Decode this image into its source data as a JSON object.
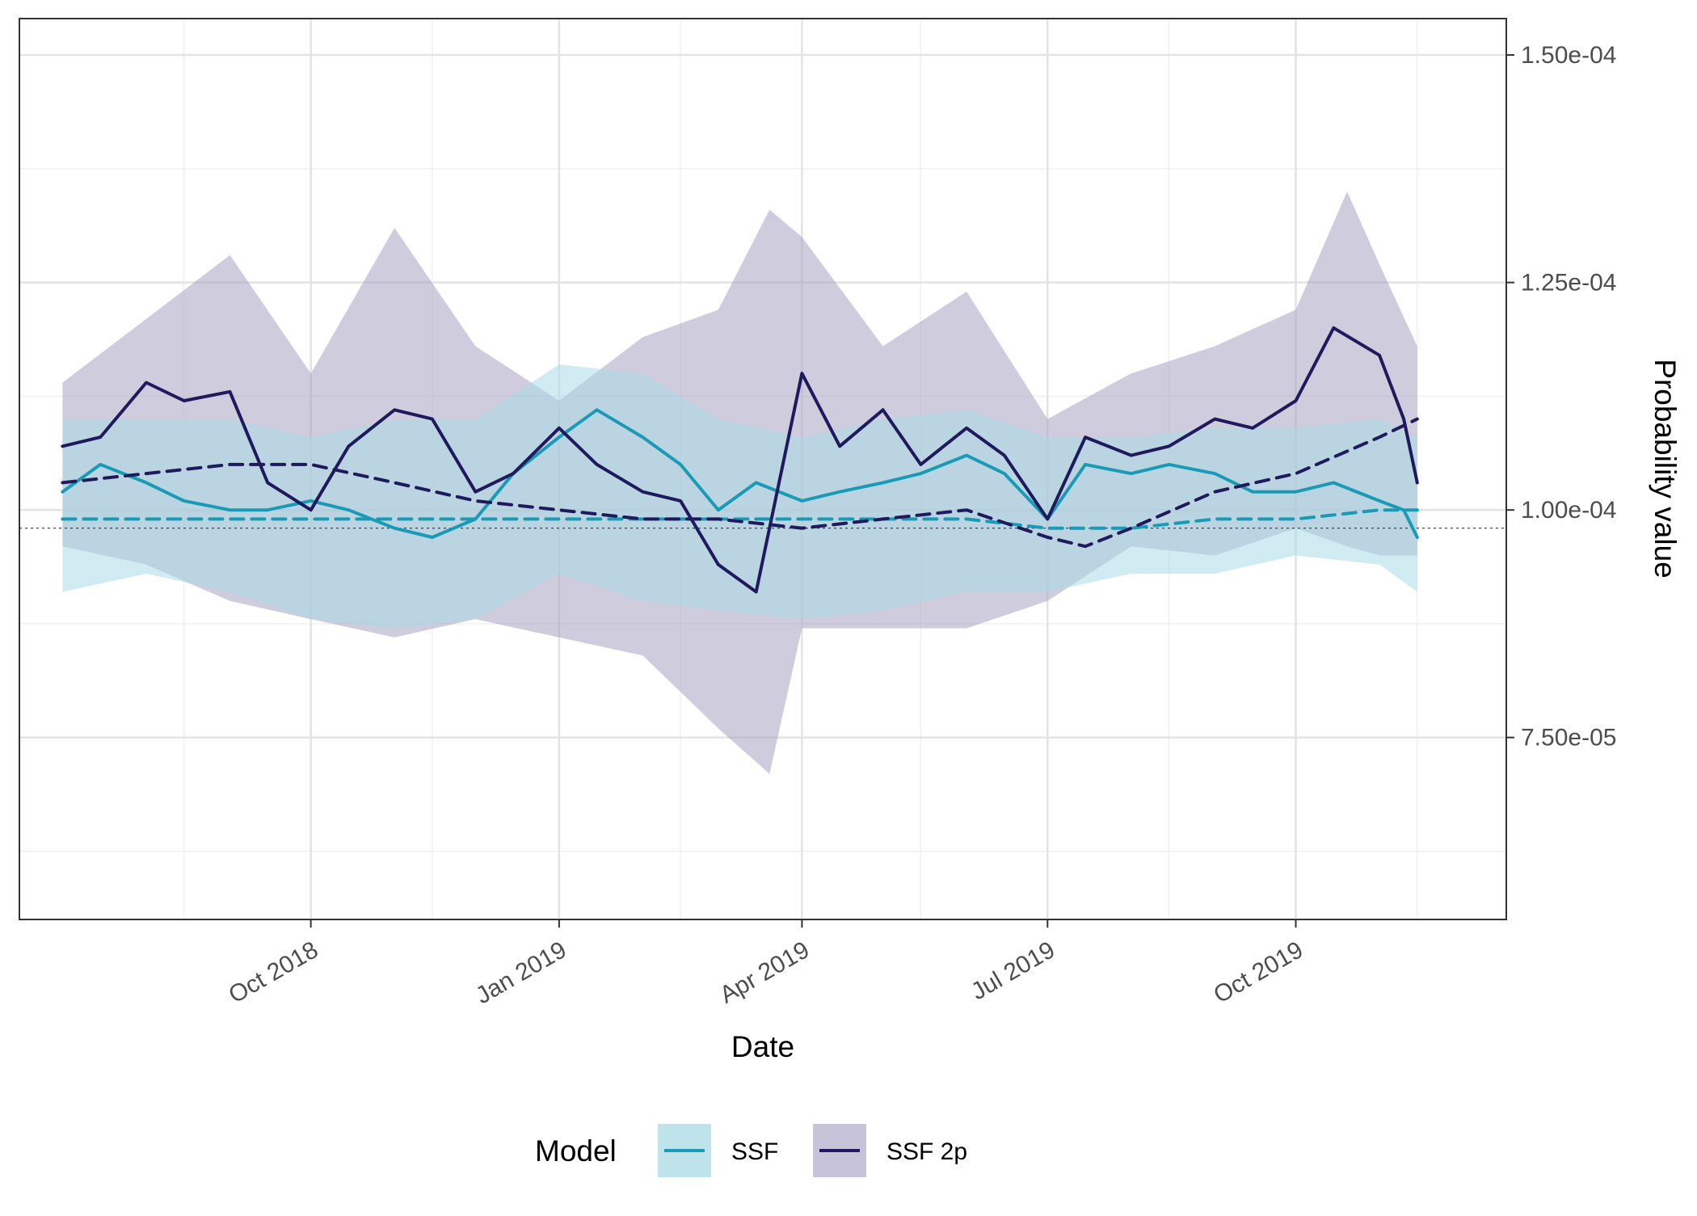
{
  "chart_data": {
    "type": "line",
    "xlabel": "Date",
    "ylabel": "Probability value",
    "x_range": [
      "2018-06-15",
      "2019-12-18"
    ],
    "ylim": [
      5.5e-05,
      0.000154
    ],
    "x_ticks": [
      {
        "date": "2018-10-01",
        "label": "Oct 2018"
      },
      {
        "date": "2019-01-01",
        "label": "Jan 2019"
      },
      {
        "date": "2019-04-01",
        "label": "Apr 2019"
      },
      {
        "date": "2019-07-01",
        "label": "Jul 2019"
      },
      {
        "date": "2019-10-01",
        "label": "Oct 2019"
      }
    ],
    "x_minor_ticks": [
      "2018-08-15",
      "2018-11-15",
      "2019-02-15",
      "2019-05-15",
      "2019-08-15",
      "2019-11-15"
    ],
    "y_ticks": [
      {
        "value": 0.00015,
        "label": "1.50e-04"
      },
      {
        "value": 0.000125,
        "label": "1.25e-04"
      },
      {
        "value": 0.0001,
        "label": "1.00e-04"
      },
      {
        "value": 7.5e-05,
        "label": "7.50e-05"
      }
    ],
    "y_minor_ticks": [
      0.0001375,
      0.0001125,
      8.75e-05,
      6.25e-05
    ],
    "reference_line": {
      "value": 9.8e-05,
      "style": "dotted"
    },
    "grid": true,
    "legend": {
      "title": "Model",
      "position": "bottom",
      "entries": [
        {
          "label": "SSF",
          "color": "#1a9bb5",
          "fill": "#bfe3ea"
        },
        {
          "label": "SSF 2p",
          "color": "#1e1a5c",
          "fill": "#c7c4d9"
        }
      ]
    },
    "colors": {
      "ssf": "#1a9bb5",
      "ssf2p": "#1e1a5c",
      "ssf_ribbon": "#a9dbe5",
      "ssf2p_ribbon": "#a8a3c2"
    },
    "series": [
      {
        "name": "SSF",
        "role": "mean",
        "style": "solid",
        "x": [
          "2018-07-01",
          "2018-07-15",
          "2018-08-01",
          "2018-08-15",
          "2018-09-01",
          "2018-09-15",
          "2018-10-01",
          "2018-10-15",
          "2018-11-01",
          "2018-11-15",
          "2018-12-01",
          "2018-12-15",
          "2019-01-01",
          "2019-01-15",
          "2019-02-01",
          "2019-02-15",
          "2019-03-01",
          "2019-03-15",
          "2019-04-01",
          "2019-04-15",
          "2019-05-01",
          "2019-05-15",
          "2019-06-01",
          "2019-06-15",
          "2019-07-01",
          "2019-07-15",
          "2019-08-01",
          "2019-08-15",
          "2019-09-01",
          "2019-09-15",
          "2019-10-01",
          "2019-10-15",
          "2019-11-01",
          "2019-11-10",
          "2019-11-15"
        ],
        "y": [
          0.000102,
          0.000105,
          0.000103,
          0.000101,
          0.0001,
          0.0001,
          0.000101,
          0.0001,
          9.8e-05,
          9.7e-05,
          9.9e-05,
          0.000104,
          0.000108,
          0.000111,
          0.000108,
          0.000105,
          0.0001,
          0.000103,
          0.000101,
          0.000102,
          0.000103,
          0.000104,
          0.000106,
          0.000104,
          9.9e-05,
          0.000105,
          0.000104,
          0.000105,
          0.000104,
          0.000102,
          0.000102,
          0.000103,
          0.000101,
          0.0001,
          9.7e-05
        ]
      },
      {
        "name": "SSF",
        "role": "median",
        "style": "dashed",
        "x": [
          "2018-07-01",
          "2018-08-01",
          "2018-09-01",
          "2018-10-01",
          "2018-11-01",
          "2018-12-01",
          "2019-01-01",
          "2019-02-01",
          "2019-03-01",
          "2019-04-01",
          "2019-05-01",
          "2019-06-01",
          "2019-07-01",
          "2019-08-01",
          "2019-09-01",
          "2019-10-01",
          "2019-11-01",
          "2019-11-15"
        ],
        "y": [
          9.9e-05,
          9.9e-05,
          9.9e-05,
          9.9e-05,
          9.9e-05,
          9.9e-05,
          9.9e-05,
          9.9e-05,
          9.9e-05,
          9.9e-05,
          9.9e-05,
          9.9e-05,
          9.8e-05,
          9.8e-05,
          9.9e-05,
          9.9e-05,
          0.0001,
          0.0001
        ]
      },
      {
        "name": "SSF 2p",
        "role": "mean",
        "style": "solid",
        "x": [
          "2018-07-01",
          "2018-07-15",
          "2018-08-01",
          "2018-08-15",
          "2018-09-01",
          "2018-09-15",
          "2018-10-01",
          "2018-10-15",
          "2018-11-01",
          "2018-11-15",
          "2018-12-01",
          "2018-12-15",
          "2019-01-01",
          "2019-01-15",
          "2019-02-01",
          "2019-02-15",
          "2019-03-01",
          "2019-03-15",
          "2019-04-01",
          "2019-04-15",
          "2019-05-01",
          "2019-05-15",
          "2019-06-01",
          "2019-06-15",
          "2019-07-01",
          "2019-07-15",
          "2019-08-01",
          "2019-08-15",
          "2019-09-01",
          "2019-09-15",
          "2019-10-01",
          "2019-10-15",
          "2019-11-01",
          "2019-11-10",
          "2019-11-15"
        ],
        "y": [
          0.000107,
          0.000108,
          0.000114,
          0.000112,
          0.000113,
          0.000103,
          0.0001,
          0.000107,
          0.000111,
          0.00011,
          0.000102,
          0.000104,
          0.000109,
          0.000105,
          0.000102,
          0.000101,
          9.4e-05,
          9.1e-05,
          0.000115,
          0.000107,
          0.000111,
          0.000105,
          0.000109,
          0.000106,
          9.9e-05,
          0.000108,
          0.000106,
          0.000107,
          0.00011,
          0.000109,
          0.000112,
          0.00012,
          0.000117,
          0.00011,
          0.000103
        ]
      },
      {
        "name": "SSF 2p",
        "role": "median",
        "style": "dashed",
        "x": [
          "2018-07-01",
          "2018-08-01",
          "2018-09-01",
          "2018-10-01",
          "2018-11-01",
          "2018-12-01",
          "2019-01-01",
          "2019-02-01",
          "2019-03-01",
          "2019-04-01",
          "2019-05-01",
          "2019-06-01",
          "2019-07-01",
          "2019-07-15",
          "2019-08-01",
          "2019-09-01",
          "2019-10-01",
          "2019-11-01",
          "2019-11-15"
        ],
        "y": [
          0.000103,
          0.000104,
          0.000105,
          0.000105,
          0.000103,
          0.000101,
          0.0001,
          9.9e-05,
          9.9e-05,
          9.8e-05,
          9.9e-05,
          0.0001,
          9.7e-05,
          9.6e-05,
          9.8e-05,
          0.000102,
          0.000104,
          0.000108,
          0.00011
        ]
      }
    ],
    "ribbons": [
      {
        "name": "SSF",
        "x": [
          "2018-07-01",
          "2018-08-01",
          "2018-09-01",
          "2018-10-01",
          "2018-11-01",
          "2018-12-01",
          "2019-01-01",
          "2019-02-01",
          "2019-03-01",
          "2019-04-01",
          "2019-05-01",
          "2019-06-01",
          "2019-07-01",
          "2019-08-01",
          "2019-09-01",
          "2019-10-01",
          "2019-11-01",
          "2019-11-15"
        ],
        "lower": [
          9.1e-05,
          9.3e-05,
          9.1e-05,
          8.8e-05,
          8.7e-05,
          8.8e-05,
          9.3e-05,
          9e-05,
          8.9e-05,
          8.8e-05,
          8.9e-05,
          9.1e-05,
          9.1e-05,
          9.3e-05,
          9.3e-05,
          9.5e-05,
          9.4e-05,
          9.1e-05
        ],
        "upper": [
          0.00011,
          0.00011,
          0.00011,
          0.000108,
          0.00011,
          0.00011,
          0.000116,
          0.000115,
          0.00011,
          0.000108,
          0.00011,
          0.000111,
          0.000108,
          0.000108,
          0.000109,
          0.000109,
          0.00011,
          0.000108
        ]
      },
      {
        "name": "SSF 2p",
        "x": [
          "2018-07-01",
          "2018-08-01",
          "2018-09-01",
          "2018-10-01",
          "2018-11-01",
          "2018-12-01",
          "2019-01-01",
          "2019-02-01",
          "2019-03-01",
          "2019-03-20",
          "2019-04-01",
          "2019-05-01",
          "2019-06-01",
          "2019-07-01",
          "2019-08-01",
          "2019-09-01",
          "2019-10-01",
          "2019-10-20",
          "2019-11-01",
          "2019-11-15"
        ],
        "lower": [
          9.6e-05,
          9.4e-05,
          9e-05,
          8.8e-05,
          8.6e-05,
          8.8e-05,
          8.6e-05,
          8.4e-05,
          7.6e-05,
          7.1e-05,
          8.7e-05,
          8.7e-05,
          8.7e-05,
          9e-05,
          9.6e-05,
          9.5e-05,
          9.8e-05,
          9.6e-05,
          9.5e-05,
          9.5e-05
        ],
        "upper": [
          0.000114,
          0.000121,
          0.000128,
          0.000115,
          0.000131,
          0.000118,
          0.000112,
          0.000119,
          0.000122,
          0.000133,
          0.00013,
          0.000118,
          0.000124,
          0.00011,
          0.000115,
          0.000118,
          0.000122,
          0.000135,
          0.000127,
          0.000118
        ]
      }
    ]
  }
}
